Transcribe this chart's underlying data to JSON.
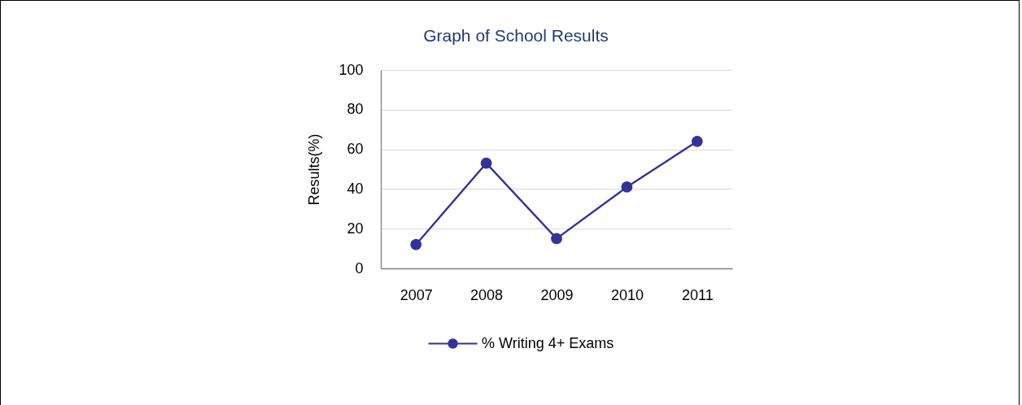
{
  "chart_data": {
    "type": "line",
    "title": "Graph of School Results",
    "ylabel": "Results(%)",
    "categories": [
      "2007",
      "2008",
      "2009",
      "2010",
      "2011"
    ],
    "series": [
      {
        "name": "% Writing 4+ Exams",
        "color": "#333399",
        "values": [
          12,
          53,
          15,
          41,
          64
        ]
      }
    ],
    "ylim": [
      0,
      100
    ],
    "yticks": [
      0,
      20,
      40,
      60,
      80,
      100
    ],
    "grid": "y",
    "legend": "bottom",
    "marker": "circle"
  }
}
